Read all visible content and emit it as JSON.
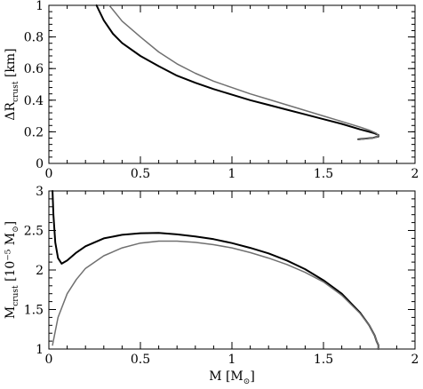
{
  "chart_data": [
    {
      "type": "line",
      "title": "",
      "xlabel": "",
      "ylabel": {
        "main": "ΔR",
        "sub": "crust",
        "unit": " [km]"
      },
      "xlim": [
        0,
        2
      ],
      "ylim": [
        0,
        1
      ],
      "xticks": [
        0,
        0.5,
        1,
        1.5,
        2
      ],
      "xtick_labels": [
        "0",
        "0.5",
        "1",
        "1.5",
        "2"
      ],
      "yticks": [
        0,
        0.2,
        0.4,
        0.6,
        0.8,
        1
      ],
      "ytick_labels": [
        "0",
        "0.2",
        "0.4",
        "0.6",
        "0.8",
        "1"
      ],
      "grid": false,
      "series": [
        {
          "color": "#000000",
          "x": [
            0.26,
            0.3,
            0.35,
            0.4,
            0.5,
            0.6,
            0.7,
            0.8,
            0.9,
            1.0,
            1.1,
            1.2,
            1.3,
            1.4,
            1.5,
            1.6,
            1.7,
            1.75,
            1.78,
            1.8,
            1.8,
            1.77,
            1.72,
            1.69
          ],
          "y": [
            1.0,
            0.905,
            0.82,
            0.762,
            0.68,
            0.615,
            0.555,
            0.51,
            0.47,
            0.435,
            0.4,
            0.37,
            0.34,
            0.31,
            0.28,
            0.25,
            0.215,
            0.2,
            0.19,
            0.18,
            0.17,
            0.162,
            0.156,
            0.152
          ]
        },
        {
          "color": "#707070",
          "x": [
            0.33,
            0.4,
            0.5,
            0.6,
            0.7,
            0.8,
            0.9,
            1.0,
            1.1,
            1.2,
            1.3,
            1.4,
            1.5,
            1.6,
            1.7,
            1.75,
            1.79,
            1.8,
            1.79,
            1.76,
            1.72,
            1.69
          ],
          "y": [
            1.0,
            0.9,
            0.8,
            0.705,
            0.63,
            0.57,
            0.52,
            0.48,
            0.44,
            0.405,
            0.37,
            0.335,
            0.3,
            0.265,
            0.23,
            0.21,
            0.19,
            0.175,
            0.165,
            0.16,
            0.155,
            0.15
          ]
        }
      ]
    },
    {
      "type": "line",
      "title": "",
      "xlabel": {
        "main": "M [M",
        "sub": "⊙",
        "end": "]"
      },
      "ylabel": {
        "main": "M",
        "sub": "crust",
        "unit": " [10⁻⁵ M",
        "unit_sub": "⊙",
        "unit_end": "]"
      },
      "xlim": [
        0,
        2
      ],
      "ylim": [
        1,
        3
      ],
      "xticks": [
        0,
        0.5,
        1,
        1.5,
        2
      ],
      "xtick_labels": [
        "0",
        "0.5",
        "1",
        "1.5",
        "2"
      ],
      "yticks": [
        1,
        1.5,
        2,
        2.5,
        3
      ],
      "ytick_labels": [
        "1",
        "1.5",
        "2",
        "2.5",
        "3"
      ],
      "grid": false,
      "series": [
        {
          "color": "#000000",
          "x": [
            0.02,
            0.025,
            0.035,
            0.05,
            0.07,
            0.1,
            0.15,
            0.2,
            0.3,
            0.4,
            0.5,
            0.6,
            0.7,
            0.8,
            0.9,
            1.0,
            1.1,
            1.2,
            1.3,
            1.4,
            1.5,
            1.6,
            1.7,
            1.75,
            1.78,
            1.79,
            1.8,
            1.8
          ],
          "y": [
            3.0,
            2.7,
            2.35,
            2.15,
            2.08,
            2.12,
            2.22,
            2.3,
            2.4,
            2.445,
            2.465,
            2.468,
            2.45,
            2.425,
            2.39,
            2.34,
            2.28,
            2.21,
            2.12,
            2.01,
            1.87,
            1.7,
            1.46,
            1.3,
            1.17,
            1.1,
            1.05,
            1.0
          ]
        },
        {
          "color": "#707070",
          "x": [
            0.02,
            0.05,
            0.1,
            0.15,
            0.2,
            0.3,
            0.4,
            0.5,
            0.6,
            0.7,
            0.8,
            0.9,
            1.0,
            1.1,
            1.2,
            1.3,
            1.4,
            1.5,
            1.6,
            1.7,
            1.75,
            1.78,
            1.79,
            1.8,
            1.8
          ],
          "y": [
            1.05,
            1.4,
            1.7,
            1.88,
            2.02,
            2.18,
            2.28,
            2.34,
            2.365,
            2.365,
            2.35,
            2.32,
            2.28,
            2.22,
            2.15,
            2.07,
            1.97,
            1.85,
            1.68,
            1.45,
            1.3,
            1.17,
            1.1,
            1.05,
            1.0
          ]
        }
      ]
    }
  ]
}
